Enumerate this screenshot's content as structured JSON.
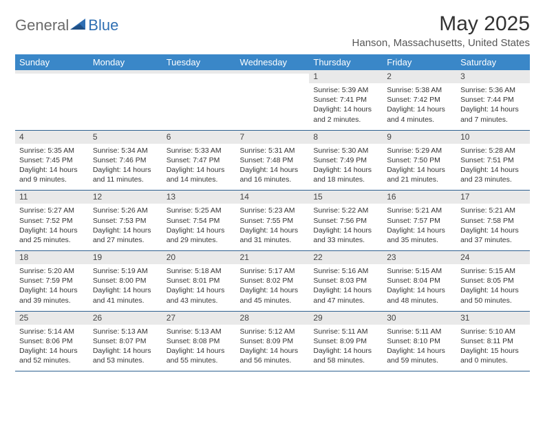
{
  "logo": {
    "general": "General",
    "blue": "Blue"
  },
  "title": "May 2025",
  "location": "Hanson, Massachusetts, United States",
  "colors": {
    "header_bg": "#3a87c8",
    "header_text": "#ffffff",
    "daynum_bg": "#e9e9e9",
    "cell_border": "#2c5f8f",
    "logo_grey": "#6a6a6a",
    "logo_blue": "#2f6fb3"
  },
  "day_headers": [
    "Sunday",
    "Monday",
    "Tuesday",
    "Wednesday",
    "Thursday",
    "Friday",
    "Saturday"
  ],
  "weeks": [
    [
      {
        "num": "",
        "sunrise": "",
        "sunset": "",
        "daylight": ""
      },
      {
        "num": "",
        "sunrise": "",
        "sunset": "",
        "daylight": ""
      },
      {
        "num": "",
        "sunrise": "",
        "sunset": "",
        "daylight": ""
      },
      {
        "num": "",
        "sunrise": "",
        "sunset": "",
        "daylight": ""
      },
      {
        "num": "1",
        "sunrise": "Sunrise: 5:39 AM",
        "sunset": "Sunset: 7:41 PM",
        "daylight": "Daylight: 14 hours and 2 minutes."
      },
      {
        "num": "2",
        "sunrise": "Sunrise: 5:38 AM",
        "sunset": "Sunset: 7:42 PM",
        "daylight": "Daylight: 14 hours and 4 minutes."
      },
      {
        "num": "3",
        "sunrise": "Sunrise: 5:36 AM",
        "sunset": "Sunset: 7:44 PM",
        "daylight": "Daylight: 14 hours and 7 minutes."
      }
    ],
    [
      {
        "num": "4",
        "sunrise": "Sunrise: 5:35 AM",
        "sunset": "Sunset: 7:45 PM",
        "daylight": "Daylight: 14 hours and 9 minutes."
      },
      {
        "num": "5",
        "sunrise": "Sunrise: 5:34 AM",
        "sunset": "Sunset: 7:46 PM",
        "daylight": "Daylight: 14 hours and 11 minutes."
      },
      {
        "num": "6",
        "sunrise": "Sunrise: 5:33 AM",
        "sunset": "Sunset: 7:47 PM",
        "daylight": "Daylight: 14 hours and 14 minutes."
      },
      {
        "num": "7",
        "sunrise": "Sunrise: 5:31 AM",
        "sunset": "Sunset: 7:48 PM",
        "daylight": "Daylight: 14 hours and 16 minutes."
      },
      {
        "num": "8",
        "sunrise": "Sunrise: 5:30 AM",
        "sunset": "Sunset: 7:49 PM",
        "daylight": "Daylight: 14 hours and 18 minutes."
      },
      {
        "num": "9",
        "sunrise": "Sunrise: 5:29 AM",
        "sunset": "Sunset: 7:50 PM",
        "daylight": "Daylight: 14 hours and 21 minutes."
      },
      {
        "num": "10",
        "sunrise": "Sunrise: 5:28 AM",
        "sunset": "Sunset: 7:51 PM",
        "daylight": "Daylight: 14 hours and 23 minutes."
      }
    ],
    [
      {
        "num": "11",
        "sunrise": "Sunrise: 5:27 AM",
        "sunset": "Sunset: 7:52 PM",
        "daylight": "Daylight: 14 hours and 25 minutes."
      },
      {
        "num": "12",
        "sunrise": "Sunrise: 5:26 AM",
        "sunset": "Sunset: 7:53 PM",
        "daylight": "Daylight: 14 hours and 27 minutes."
      },
      {
        "num": "13",
        "sunrise": "Sunrise: 5:25 AM",
        "sunset": "Sunset: 7:54 PM",
        "daylight": "Daylight: 14 hours and 29 minutes."
      },
      {
        "num": "14",
        "sunrise": "Sunrise: 5:23 AM",
        "sunset": "Sunset: 7:55 PM",
        "daylight": "Daylight: 14 hours and 31 minutes."
      },
      {
        "num": "15",
        "sunrise": "Sunrise: 5:22 AM",
        "sunset": "Sunset: 7:56 PM",
        "daylight": "Daylight: 14 hours and 33 minutes."
      },
      {
        "num": "16",
        "sunrise": "Sunrise: 5:21 AM",
        "sunset": "Sunset: 7:57 PM",
        "daylight": "Daylight: 14 hours and 35 minutes."
      },
      {
        "num": "17",
        "sunrise": "Sunrise: 5:21 AM",
        "sunset": "Sunset: 7:58 PM",
        "daylight": "Daylight: 14 hours and 37 minutes."
      }
    ],
    [
      {
        "num": "18",
        "sunrise": "Sunrise: 5:20 AM",
        "sunset": "Sunset: 7:59 PM",
        "daylight": "Daylight: 14 hours and 39 minutes."
      },
      {
        "num": "19",
        "sunrise": "Sunrise: 5:19 AM",
        "sunset": "Sunset: 8:00 PM",
        "daylight": "Daylight: 14 hours and 41 minutes."
      },
      {
        "num": "20",
        "sunrise": "Sunrise: 5:18 AM",
        "sunset": "Sunset: 8:01 PM",
        "daylight": "Daylight: 14 hours and 43 minutes."
      },
      {
        "num": "21",
        "sunrise": "Sunrise: 5:17 AM",
        "sunset": "Sunset: 8:02 PM",
        "daylight": "Daylight: 14 hours and 45 minutes."
      },
      {
        "num": "22",
        "sunrise": "Sunrise: 5:16 AM",
        "sunset": "Sunset: 8:03 PM",
        "daylight": "Daylight: 14 hours and 47 minutes."
      },
      {
        "num": "23",
        "sunrise": "Sunrise: 5:15 AM",
        "sunset": "Sunset: 8:04 PM",
        "daylight": "Daylight: 14 hours and 48 minutes."
      },
      {
        "num": "24",
        "sunrise": "Sunrise: 5:15 AM",
        "sunset": "Sunset: 8:05 PM",
        "daylight": "Daylight: 14 hours and 50 minutes."
      }
    ],
    [
      {
        "num": "25",
        "sunrise": "Sunrise: 5:14 AM",
        "sunset": "Sunset: 8:06 PM",
        "daylight": "Daylight: 14 hours and 52 minutes."
      },
      {
        "num": "26",
        "sunrise": "Sunrise: 5:13 AM",
        "sunset": "Sunset: 8:07 PM",
        "daylight": "Daylight: 14 hours and 53 minutes."
      },
      {
        "num": "27",
        "sunrise": "Sunrise: 5:13 AM",
        "sunset": "Sunset: 8:08 PM",
        "daylight": "Daylight: 14 hours and 55 minutes."
      },
      {
        "num": "28",
        "sunrise": "Sunrise: 5:12 AM",
        "sunset": "Sunset: 8:09 PM",
        "daylight": "Daylight: 14 hours and 56 minutes."
      },
      {
        "num": "29",
        "sunrise": "Sunrise: 5:11 AM",
        "sunset": "Sunset: 8:09 PM",
        "daylight": "Daylight: 14 hours and 58 minutes."
      },
      {
        "num": "30",
        "sunrise": "Sunrise: 5:11 AM",
        "sunset": "Sunset: 8:10 PM",
        "daylight": "Daylight: 14 hours and 59 minutes."
      },
      {
        "num": "31",
        "sunrise": "Sunrise: 5:10 AM",
        "sunset": "Sunset: 8:11 PM",
        "daylight": "Daylight: 15 hours and 0 minutes."
      }
    ]
  ]
}
